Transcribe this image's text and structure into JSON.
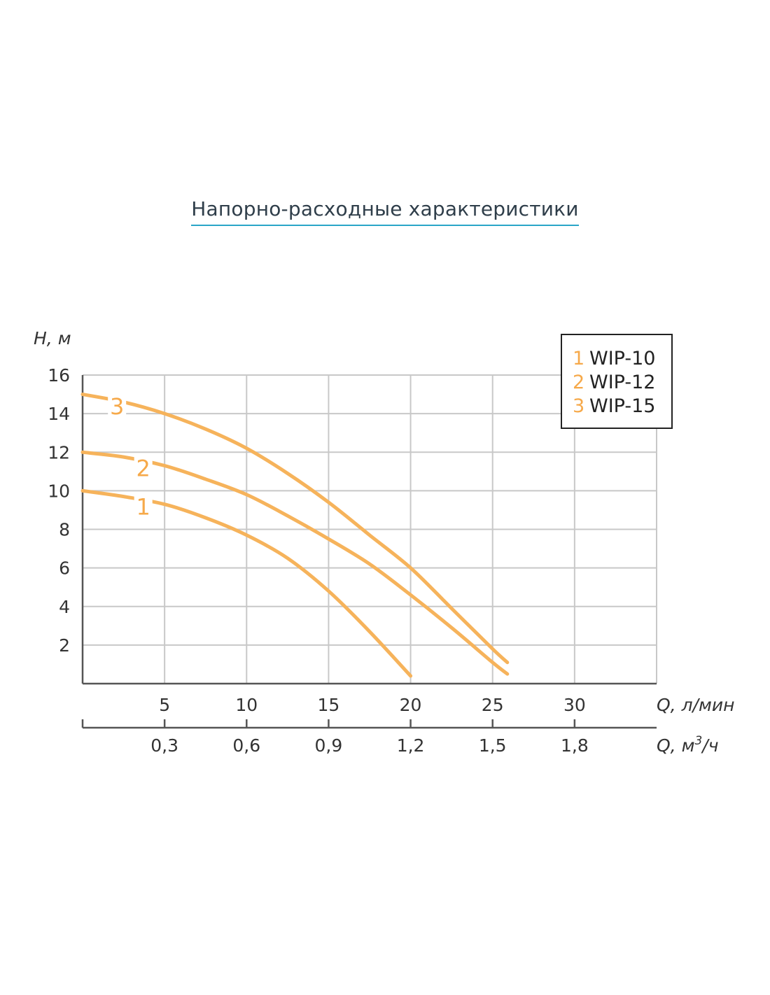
{
  "page": {
    "title": "Напорно-расходные характеристики"
  },
  "colors": {
    "curve": "#f6b35b",
    "grid": "#c8c8c8",
    "axis": "#555555",
    "title_underline": "#2aa5c8"
  },
  "chart_data": {
    "type": "line",
    "ylabel": "H, м",
    "xlabel": "Q, л/мин",
    "x2label_main": "Q, м",
    "x2label_sup": "3",
    "x2label_tail": "/ч",
    "xlim": [
      0,
      35
    ],
    "ylim": [
      0,
      16
    ],
    "y_ticks": [
      2,
      4,
      6,
      8,
      10,
      12,
      14,
      16
    ],
    "x_ticks": [
      5,
      10,
      15,
      20,
      25,
      30
    ],
    "x_tick_labels": [
      "5",
      "10",
      "15",
      "20",
      "25",
      "30"
    ],
    "x2_ticks": [
      0.3,
      0.6,
      0.9,
      1.2,
      1.5,
      1.8
    ],
    "x2_tick_labels": [
      "0,3",
      "0,6",
      "0,9",
      "1,2",
      "1,5",
      "1,8"
    ],
    "grid": true,
    "legend_placement": "top-right",
    "series": [
      {
        "name": "WIP-10",
        "number": "1",
        "x": [
          0,
          2.5,
          5,
          7.5,
          10,
          12.5,
          15,
          17.5,
          20
        ],
        "y": [
          10,
          9.7,
          9.3,
          8.6,
          7.7,
          6.5,
          4.8,
          2.7,
          0.4
        ]
      },
      {
        "name": "WIP-12",
        "number": "2",
        "x": [
          0,
          2.5,
          5,
          7.5,
          10,
          12.5,
          15,
          17.5,
          20,
          22.5,
          25,
          25.9
        ],
        "y": [
          12,
          11.75,
          11.3,
          10.6,
          9.8,
          8.7,
          7.5,
          6.2,
          4.6,
          2.9,
          1.1,
          0.5
        ]
      },
      {
        "name": "WIP-15",
        "number": "3",
        "x": [
          0,
          2.5,
          5,
          7.5,
          10,
          12.5,
          15,
          17.5,
          20,
          22.5,
          25,
          25.9
        ],
        "y": [
          15,
          14.6,
          14.0,
          13.2,
          12.2,
          10.9,
          9.4,
          7.7,
          6.0,
          3.9,
          1.8,
          1.1
        ]
      }
    ],
    "curve_labels": [
      {
        "text": "1",
        "x": 3.7,
        "y": 9.2
      },
      {
        "text": "2",
        "x": 3.7,
        "y": 11.2
      },
      {
        "text": "3",
        "x": 2.1,
        "y": 14.4
      }
    ]
  }
}
